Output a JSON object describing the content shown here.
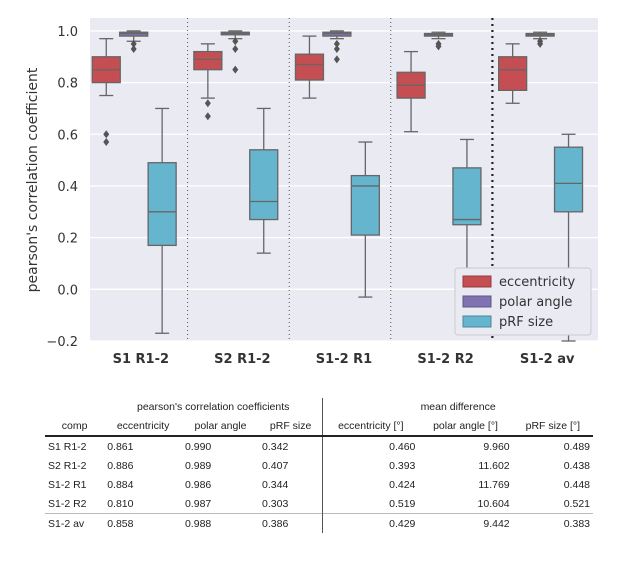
{
  "chart_data": {
    "type": "box",
    "ylabel": "pearson's correlation coefficient",
    "ylim": [
      -0.2,
      1.05
    ],
    "yticks": [
      -0.2,
      0.0,
      0.2,
      0.4,
      0.6,
      0.8,
      1.0
    ],
    "ytick_labels": [
      "−0.2",
      "0.0",
      "0.2",
      "0.4",
      "0.6",
      "0.8",
      "1.0"
    ],
    "grid": true,
    "legend_position": "bottom-right",
    "categories": [
      "S1 R1-2",
      "S2 R1-2",
      "S1-2 R1",
      "S1-2 R2",
      "S1-2 av"
    ],
    "series": [
      {
        "name": "eccentricity",
        "color": "#c44e52",
        "boxes": [
          {
            "whislo": 0.75,
            "q1": 0.8,
            "med": 0.85,
            "q3": 0.9,
            "whishi": 0.97,
            "fliers": [
              0.6,
              0.57
            ]
          },
          {
            "whislo": 0.74,
            "q1": 0.85,
            "med": 0.89,
            "q3": 0.92,
            "whishi": 0.95,
            "fliers": [
              0.72,
              0.67
            ]
          },
          {
            "whislo": 0.74,
            "q1": 0.81,
            "med": 0.87,
            "q3": 0.91,
            "whishi": 0.98,
            "fliers": []
          },
          {
            "whislo": 0.61,
            "q1": 0.74,
            "med": 0.79,
            "q3": 0.84,
            "whishi": 0.92,
            "fliers": []
          },
          {
            "whislo": 0.72,
            "q1": 0.77,
            "med": 0.85,
            "q3": 0.9,
            "whishi": 0.95,
            "fliers": []
          }
        ]
      },
      {
        "name": "polar angle",
        "color": "#8172b2",
        "boxes": [
          {
            "whislo": 0.96,
            "q1": 0.98,
            "med": 0.99,
            "q3": 0.995,
            "whishi": 1.0,
            "fliers": [
              0.95,
              0.93
            ]
          },
          {
            "whislo": 0.97,
            "q1": 0.985,
            "med": 0.99,
            "q3": 0.995,
            "whishi": 1.0,
            "fliers": [
              0.96,
              0.93,
              0.85
            ]
          },
          {
            "whislo": 0.97,
            "q1": 0.98,
            "med": 0.99,
            "q3": 0.995,
            "whishi": 1.0,
            "fliers": [
              0.95,
              0.93,
              0.89
            ]
          },
          {
            "whislo": 0.97,
            "q1": 0.98,
            "med": 0.985,
            "q3": 0.99,
            "whishi": 0.995,
            "fliers": [
              0.95,
              0.94
            ]
          },
          {
            "whislo": 0.97,
            "q1": 0.98,
            "med": 0.985,
            "q3": 0.99,
            "whishi": 0.995,
            "fliers": [
              0.96,
              0.95
            ]
          }
        ]
      },
      {
        "name": "pRF size",
        "color": "#64b5cd",
        "boxes": [
          {
            "whislo": -0.17,
            "q1": 0.17,
            "med": 0.3,
            "q3": 0.49,
            "whishi": 0.7,
            "fliers": []
          },
          {
            "whislo": 0.14,
            "q1": 0.27,
            "med": 0.34,
            "q3": 0.54,
            "whishi": 0.7,
            "fliers": []
          },
          {
            "whislo": -0.03,
            "q1": 0.21,
            "med": 0.4,
            "q3": 0.44,
            "whishi": 0.57,
            "fliers": []
          },
          {
            "whislo": -0.15,
            "q1": 0.25,
            "med": 0.27,
            "q3": 0.47,
            "whishi": 0.58,
            "fliers": []
          },
          {
            "whislo": -0.2,
            "q1": 0.3,
            "med": 0.41,
            "q3": 0.55,
            "whishi": 0.6,
            "fliers": []
          }
        ]
      }
    ]
  },
  "table": {
    "group_headers": {
      "pearson": "pearson's correlation coefficients",
      "mean_diff": "mean difference"
    },
    "columns": [
      "comp",
      "eccentricity",
      "polar angle",
      "pRF size",
      "eccentricity [°]",
      "polar angle [°]",
      "pRF size [°]"
    ],
    "rows": [
      [
        "S1 R1-2",
        "0.861",
        "0.990",
        "0.342",
        "0.460",
        "9.960",
        "0.489"
      ],
      [
        "S2 R1-2",
        "0.886",
        "0.989",
        "0.407",
        "0.393",
        "11.602",
        "0.438"
      ],
      [
        "S1-2 R1",
        "0.884",
        "0.986",
        "0.344",
        "0.424",
        "11.769",
        "0.448"
      ],
      [
        "S1-2 R2",
        "0.810",
        "0.987",
        "0.303",
        "0.519",
        "10.604",
        "0.521"
      ],
      [
        "S1-2 av",
        "0.858",
        "0.988",
        "0.386",
        "0.429",
        "9.442",
        "0.383"
      ]
    ]
  }
}
